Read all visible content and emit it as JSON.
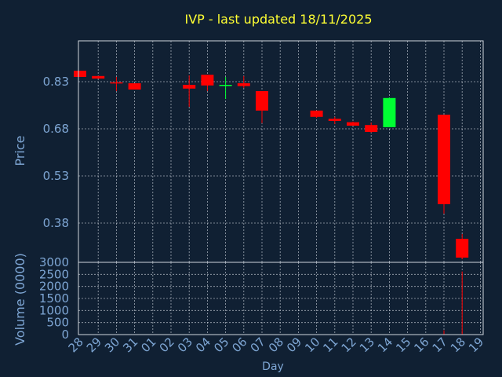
{
  "chart_data": {
    "type": "candlestick",
    "title": "IVP - last updated 18/11/2025",
    "xlabel": "Day",
    "price_axis": {
      "label": "Price",
      "ticks": [
        "0.83",
        "0.68",
        "0.53",
        "0.38"
      ],
      "tick_values": [
        0.83,
        0.68,
        0.53,
        0.38
      ],
      "range": [
        0.255,
        0.96
      ]
    },
    "volume_axis": {
      "label": "Volume (0000)",
      "ticks": [
        "3000",
        "2500",
        "2000",
        "1500",
        "1000",
        "500",
        "0"
      ],
      "tick_values": [
        3000,
        2500,
        2000,
        1500,
        1000,
        500,
        0
      ],
      "range": [
        0,
        3000
      ]
    },
    "grid": true,
    "days": [
      "28",
      "29",
      "30",
      "31",
      "01",
      "02",
      "03",
      "04",
      "05",
      "06",
      "07",
      "08",
      "09",
      "10",
      "11",
      "12",
      "13",
      "14",
      "15",
      "16",
      "17",
      "18",
      "19"
    ],
    "candles": [
      {
        "day": "28",
        "open": 0.865,
        "high": 0.865,
        "low": 0.845,
        "close": 0.845,
        "volume": 0
      },
      {
        "day": "29",
        "open": 0.848,
        "high": 0.848,
        "low": 0.84,
        "close": 0.84,
        "volume": 0
      },
      {
        "day": "30",
        "open": 0.828,
        "high": 0.845,
        "low": 0.8,
        "close": 0.826,
        "volume": 0
      },
      {
        "day": "31",
        "open": 0.825,
        "high": 0.825,
        "low": 0.805,
        "close": 0.805,
        "volume": 0
      },
      {
        "day": "01",
        "open": null,
        "high": null,
        "low": null,
        "close": null,
        "volume": 0
      },
      {
        "day": "02",
        "open": null,
        "high": null,
        "low": null,
        "close": null,
        "volume": 0
      },
      {
        "day": "03",
        "open": 0.82,
        "high": 0.85,
        "low": 0.75,
        "close": 0.808,
        "volume": 0
      },
      {
        "day": "04",
        "open": 0.852,
        "high": 0.852,
        "low": 0.8,
        "close": 0.818,
        "volume": 0
      },
      {
        "day": "05",
        "open": 0.818,
        "high": 0.845,
        "low": 0.775,
        "close": 0.82,
        "volume": 0
      },
      {
        "day": "06",
        "open": 0.825,
        "high": 0.848,
        "low": 0.81,
        "close": 0.816,
        "volume": 0
      },
      {
        "day": "07",
        "open": 0.8,
        "high": 0.8,
        "low": 0.698,
        "close": 0.738,
        "volume": 0
      },
      {
        "day": "08",
        "open": null,
        "high": null,
        "low": null,
        "close": null,
        "volume": 0
      },
      {
        "day": "09",
        "open": null,
        "high": null,
        "low": null,
        "close": null,
        "volume": 0
      },
      {
        "day": "10",
        "open": 0.738,
        "high": 0.738,
        "low": 0.715,
        "close": 0.718,
        "volume": 0
      },
      {
        "day": "11",
        "open": 0.712,
        "high": 0.718,
        "low": 0.695,
        "close": 0.705,
        "volume": 0
      },
      {
        "day": "12",
        "open": 0.701,
        "high": 0.703,
        "low": 0.69,
        "close": 0.69,
        "volume": 0
      },
      {
        "day": "13",
        "open": 0.692,
        "high": 0.7,
        "low": 0.668,
        "close": 0.67,
        "volume": 0
      },
      {
        "day": "14",
        "open": 0.685,
        "high": 0.78,
        "low": 0.685,
        "close": 0.778,
        "volume": 0
      },
      {
        "day": "15",
        "open": null,
        "high": null,
        "low": null,
        "close": null,
        "volume": 0
      },
      {
        "day": "16",
        "open": null,
        "high": null,
        "low": null,
        "close": null,
        "volume": 0
      },
      {
        "day": "17",
        "open": 0.725,
        "high": 0.725,
        "low": 0.41,
        "close": 0.44,
        "volume": 180
      },
      {
        "day": "18",
        "open": 0.33,
        "high": 0.345,
        "low": 0.265,
        "close": 0.27,
        "volume": 2620
      },
      {
        "day": "19",
        "open": null,
        "high": null,
        "low": null,
        "close": null,
        "volume": 0
      }
    ],
    "colors": {
      "background": "#102033",
      "text": "#7ea6d4",
      "title": "#ffff33",
      "up": "#00ff33",
      "down": "#ff0000",
      "grid": "#cfd6de",
      "axis": "#cfd6de",
      "volume": "#ff0000"
    }
  }
}
